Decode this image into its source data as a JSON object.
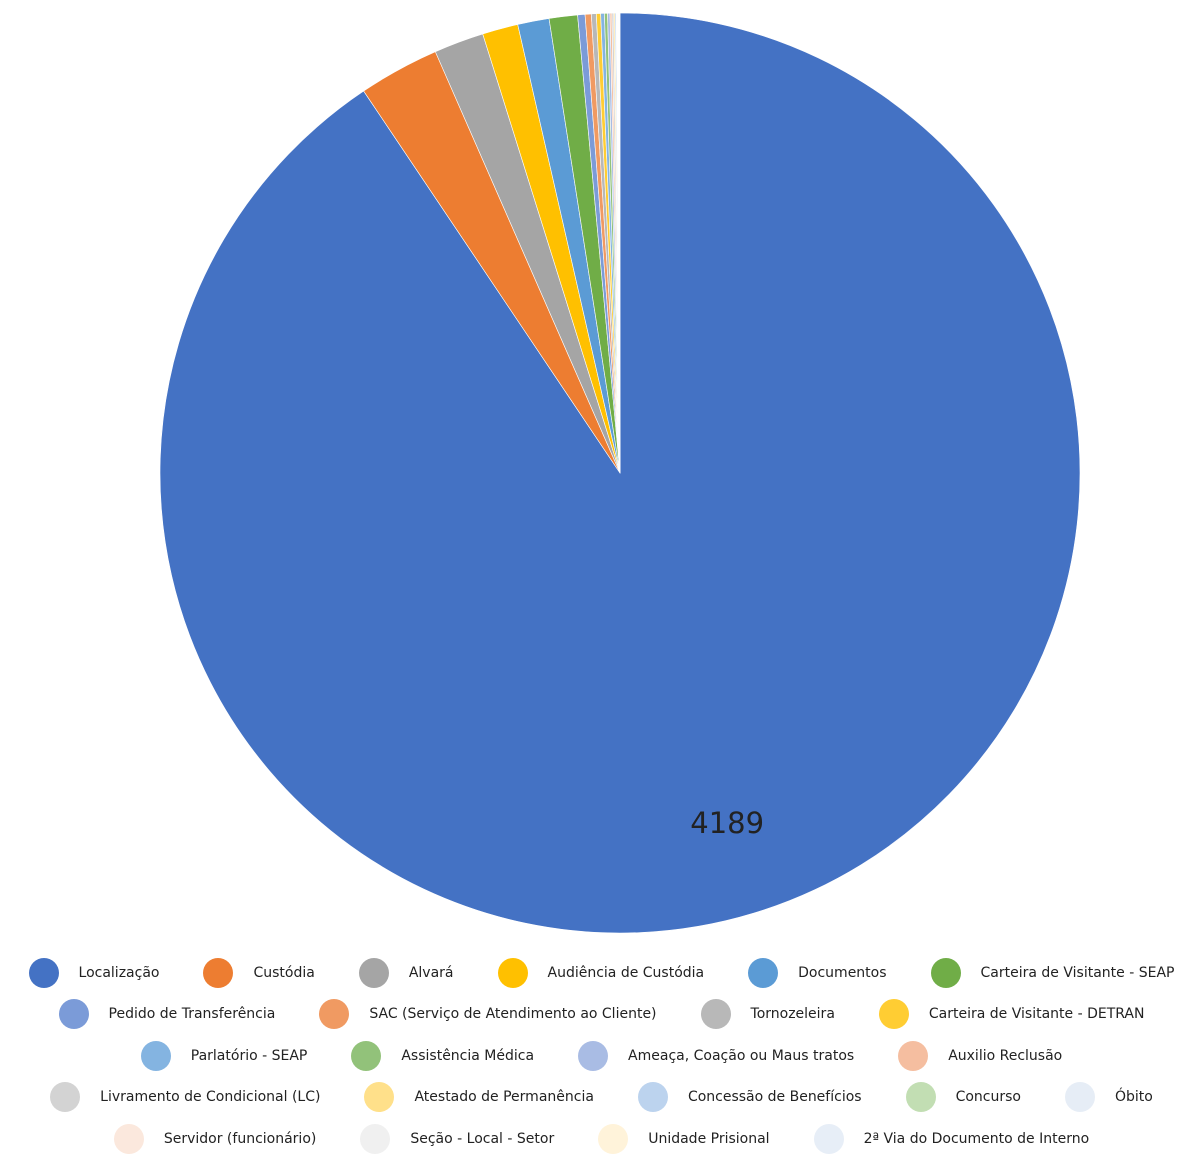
{
  "chart_data": {
    "type": "pie",
    "categories": [
      "Localização",
      "Custódia",
      "Alvará",
      "Audiência de Custódia",
      "Documentos",
      "Carteira de Visitante - SEAP",
      "Pedido de Transferência",
      "SAC (Serviço de Atendimento ao Cliente)",
      "Tornozeleira",
      "Carteira de Visitante - DETRAN",
      "Parlatório - SEAP",
      "Assistência Médica",
      "Ameaça, Coação ou Maus tratos",
      "Auxilio Reclusão",
      "Livramento de Condicional (LC)",
      "Atestado de Permanência",
      "Concessão de Benefícios",
      "Concurso",
      "Óbito",
      "Servidor (funcionário)",
      "Seção - Local - Setor",
      "Unidade Prisional",
      "2ª Via do Documento de Interno"
    ],
    "values": [
      4189,
      131,
      81,
      58,
      51,
      46,
      12,
      10,
      8,
      7,
      6,
      5,
      4,
      3,
      3,
      2,
      2,
      1,
      1,
      1,
      1,
      1,
      1
    ],
    "colors": [
      "#4472c4",
      "#ed7d31",
      "#a5a5a5",
      "#ffc000",
      "#5b9bd5",
      "#70ad47",
      "#7b9bd8",
      "#f09a62",
      "#b8b8b8",
      "#ffcd33",
      "#84b4e1",
      "#92c27a",
      "#a9bce4",
      "#f5bea0",
      "#d3d3d3",
      "#ffe08a",
      "#bcd3ee",
      "#c2deb3",
      "#e6edf6",
      "#fbe8dd",
      "#f0f0f0",
      "#fff3da",
      "#e7eef7"
    ],
    "legend": "bottom"
  }
}
